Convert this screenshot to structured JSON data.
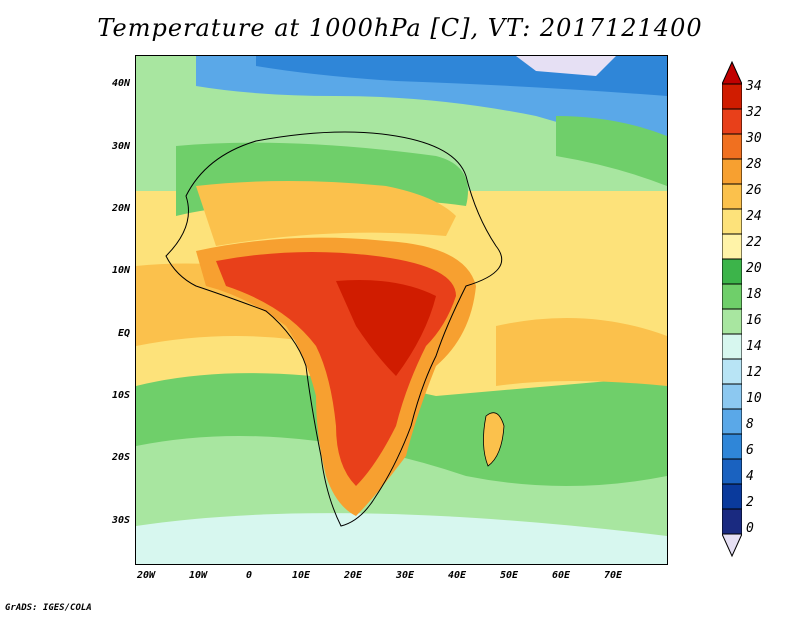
{
  "title": "Temperature at 1000hPa [C], VT: 2017121400",
  "footer": "GrADS: IGES/COLA",
  "lat_labels": [
    "40N",
    "30N",
    "20N",
    "10N",
    "EQ",
    "10S",
    "20S",
    "30S"
  ],
  "lon_labels": [
    "20W",
    "10W",
    "0",
    "10E",
    "20E",
    "30E",
    "40E",
    "50E",
    "60E",
    "70E"
  ],
  "colorbar": {
    "labels": [
      "34",
      "32",
      "30",
      "28",
      "26",
      "24",
      "22",
      "20",
      "18",
      "16",
      "14",
      "12",
      "10",
      "8",
      "6",
      "4",
      "2",
      "0"
    ],
    "colors": [
      "#d01c00",
      "#e8401a",
      "#f07020",
      "#f7a030",
      "#fbc14c",
      "#fde27a",
      "#fff3a8",
      "#3cb44a",
      "#6fcf6a",
      "#a8e6a0",
      "#d7f7ef",
      "#b8e4f5",
      "#8cc8f0",
      "#5aa8e8",
      "#2f86d8",
      "#1a62c0",
      "#0a3a9c",
      "#1a2a80"
    ],
    "over_color": "#c00000",
    "under_color": "#e6e0f4"
  },
  "map_colors": {
    "ocean_warm": "#fde27a",
    "ocean_hot": "#f7a030",
    "hot": "#e8401a",
    "hottest": "#d01c00",
    "mild": "#6fcf6a",
    "cool": "#a8e6a0",
    "cold": "#5aa8e8",
    "pale": "#d7f7ef",
    "lavender": "#e6e0f4",
    "desert": "#fbc14c"
  }
}
